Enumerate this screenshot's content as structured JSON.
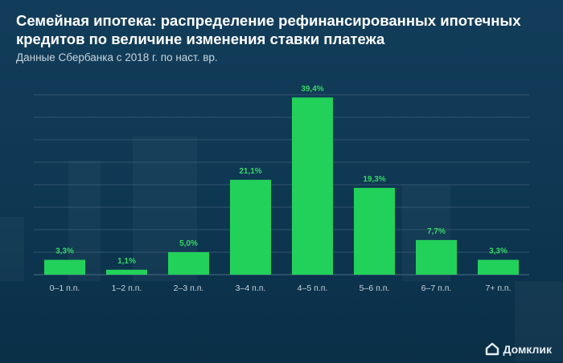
{
  "header": {
    "title": "Семейная ипотека: распределение рефинансированных ипотечных кредитов по величине изменения ставки платежа",
    "subtitle": "Данные Сбербанка с 2018 г. по наст. вр."
  },
  "brand": {
    "name": "Домклик",
    "logo_icon": "house-logo-icon"
  },
  "colors": {
    "background": "#0d3550",
    "bar": "#22d15a",
    "label": "#35d866",
    "grid": "#3f6077",
    "tick": "#c8d4dd"
  },
  "chart_data": {
    "type": "bar",
    "title": "Семейная ипотека: распределение рефинансированных ипотечных кредитов по величине изменения ставки платежа",
    "subtitle": "Данные Сбербанка с 2018 г. по наст. вр.",
    "categories": [
      "0–1 п.п.",
      "1–2 п.п.",
      "2–3 п.п.",
      "3–4 п.п.",
      "4–5 п.п.",
      "5–6 п.п.",
      "6–7 п.п.",
      "7+ п.п."
    ],
    "values": [
      3.3,
      1.1,
      5.0,
      21.1,
      39.4,
      19.3,
      7.7,
      3.3
    ],
    "data_labels": [
      "3,3%",
      "1,1%",
      "5,0%",
      "21,1%",
      "39,4%",
      "19,3%",
      "7,7%",
      "3,3%"
    ],
    "xlabel": "",
    "ylabel": "",
    "ylim": [
      0,
      40
    ],
    "grid": true,
    "legend": "none"
  }
}
